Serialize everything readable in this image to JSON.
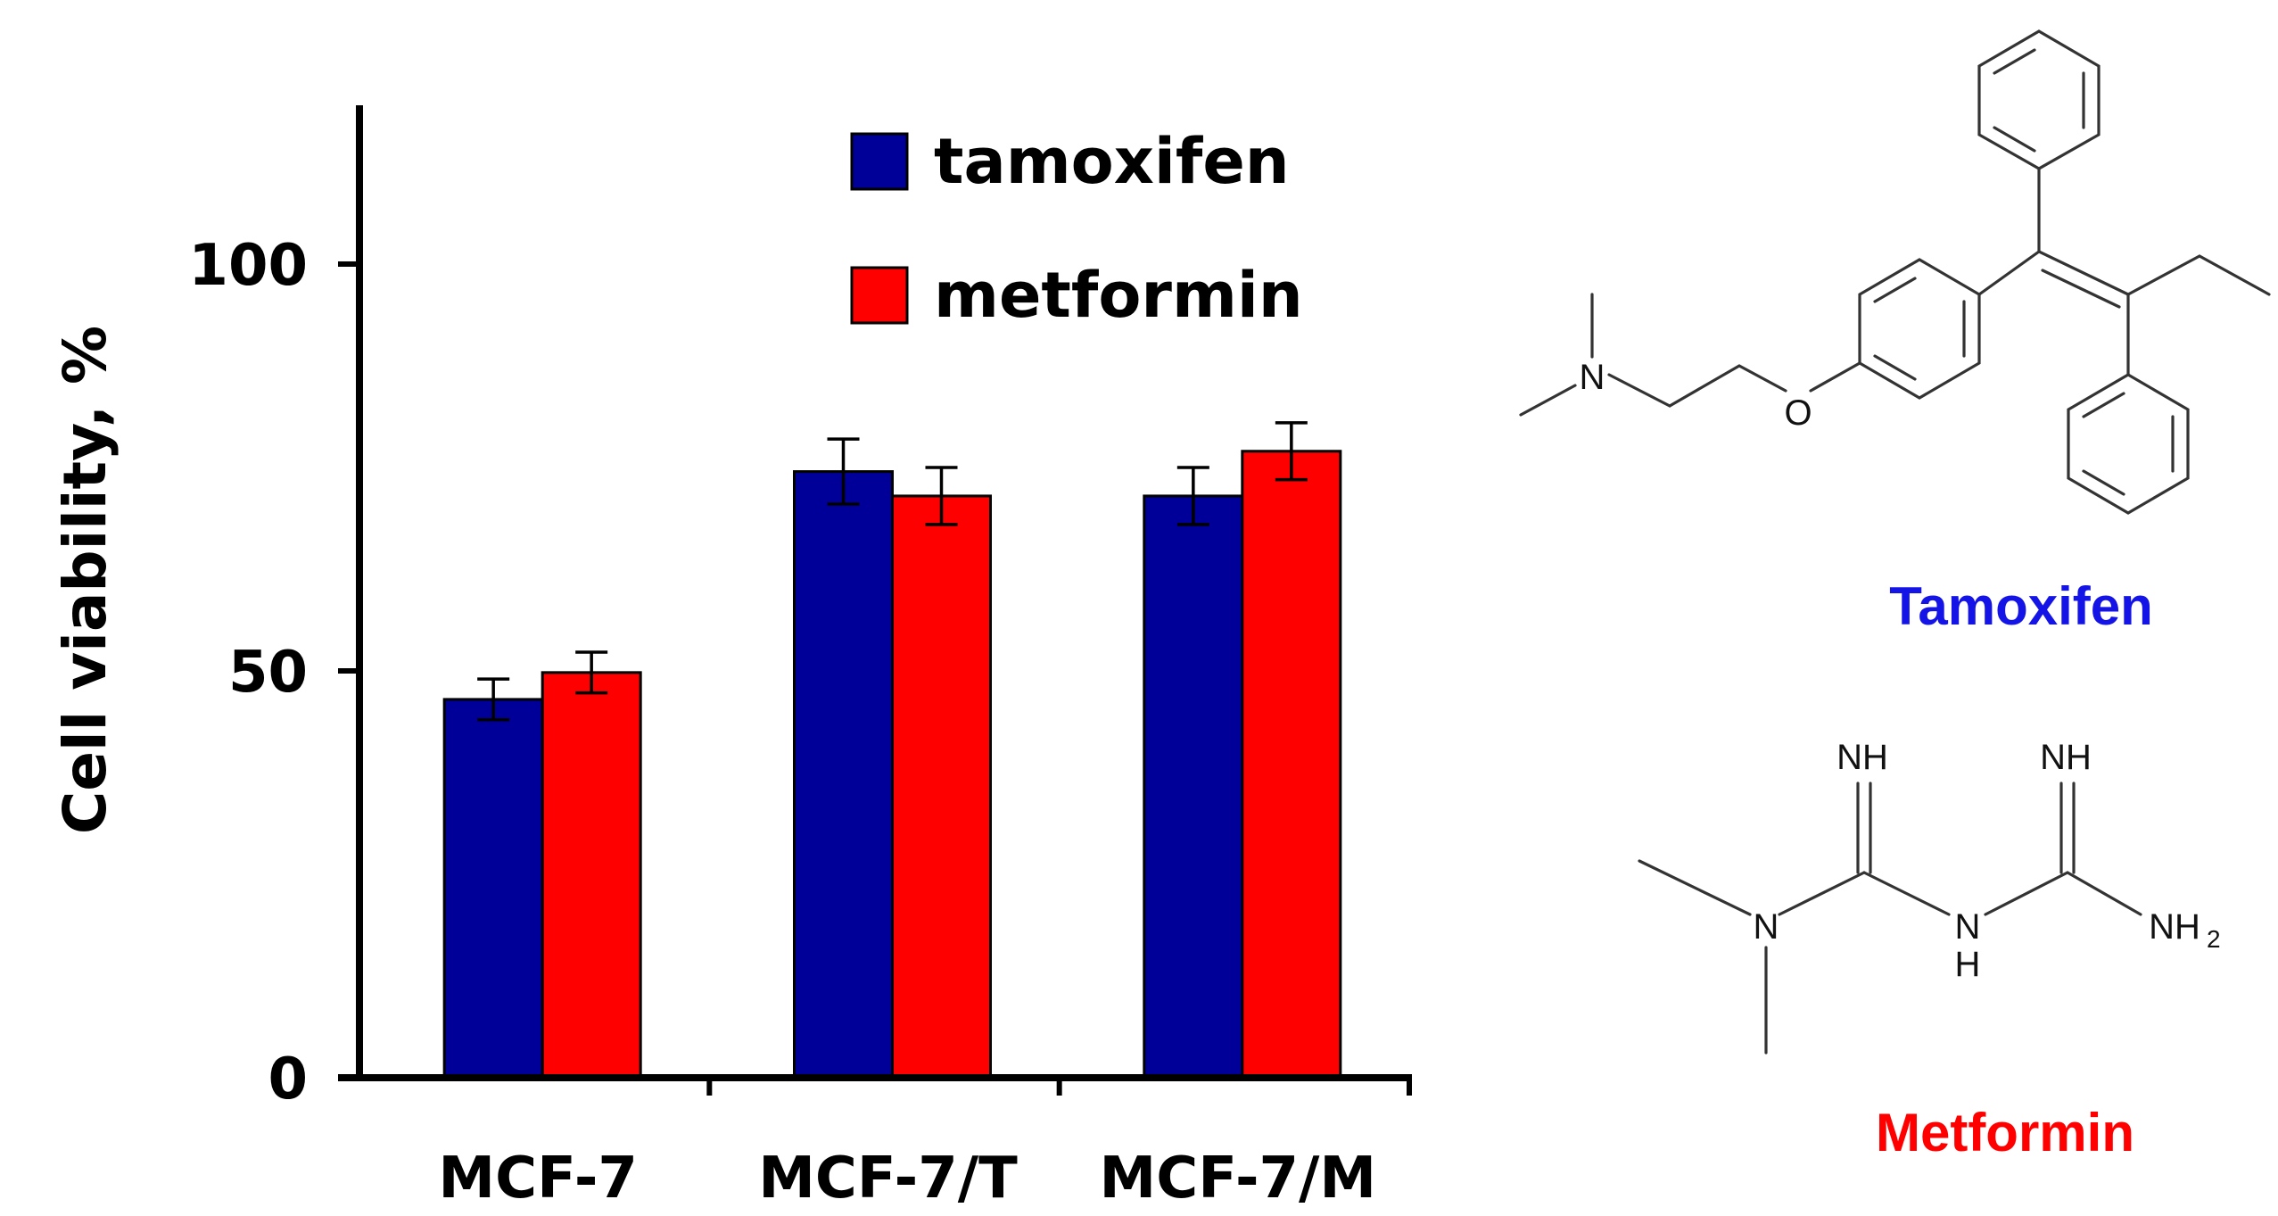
{
  "chart_data": {
    "type": "bar",
    "ylabel": "Cell viability, %",
    "ylim": [
      0,
      120
    ],
    "yticks": [
      0,
      50,
      100
    ],
    "categories": [
      "MCF-7",
      "MCF-7/T",
      "MCF-7/M"
    ],
    "series": [
      {
        "name": "tamoxifen",
        "color": "#000099",
        "values": [
          46.5,
          74.5,
          71.5
        ],
        "errors": [
          2.5,
          4.0,
          3.5
        ]
      },
      {
        "name": "metformin",
        "color": "#ff0000",
        "values": [
          49.8,
          71.5,
          77.0
        ],
        "errors": [
          2.5,
          3.5,
          3.5
        ]
      }
    ],
    "legend_position": "top-right"
  },
  "structures": {
    "tamoxifen": {
      "name": "Tamoxifen",
      "name_color": "#1414e6",
      "atom_N": "N",
      "atom_O": "O"
    },
    "metformin": {
      "name": "Metformin",
      "name_color": "#ff0000",
      "atom_NH_left": "NH",
      "atom_NH_right": "NH",
      "atom_N": "N",
      "atom_N_bridge": "N",
      "atom_H_bridge": "H",
      "atom_NH2": "NH",
      "atom_NH2_sub": "2"
    }
  }
}
